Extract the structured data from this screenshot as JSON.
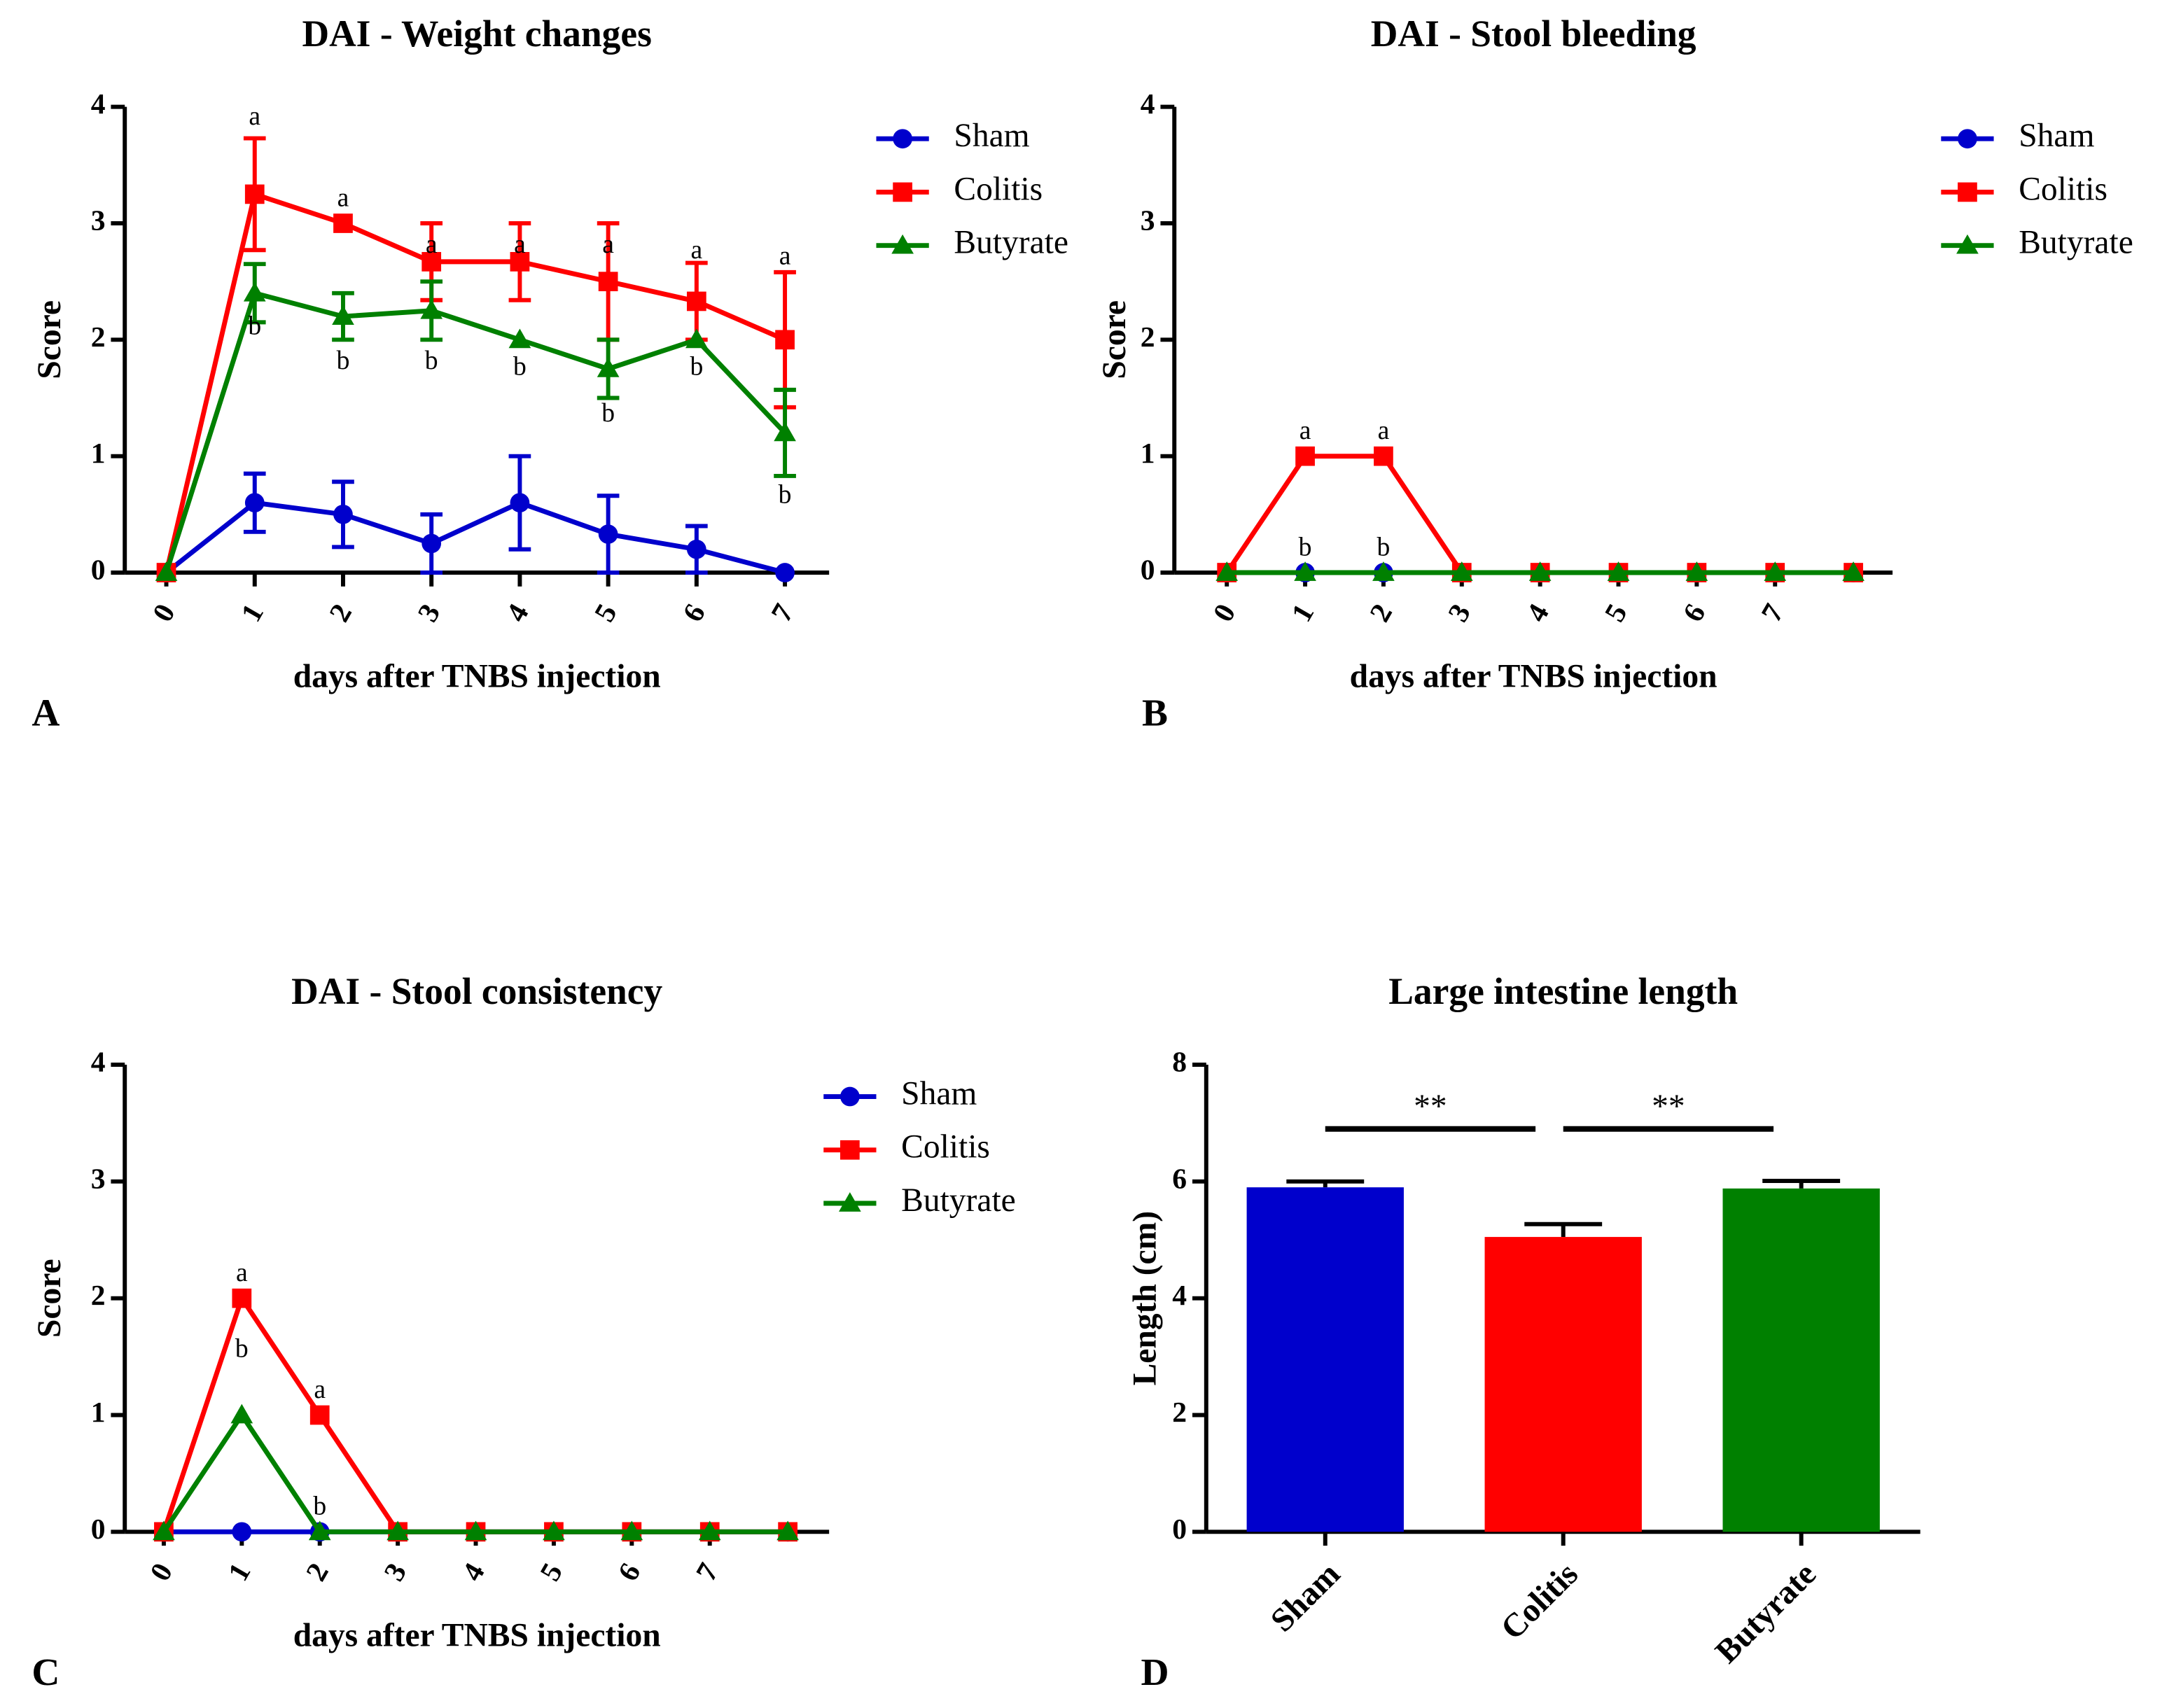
{
  "chart_data": [
    {
      "type": "line",
      "panel": "A",
      "title": "DAI - Weight changes",
      "xlabel": "days after TNBS injection",
      "ylabel": "Score",
      "x": [
        0,
        1,
        2,
        3,
        4,
        5,
        6,
        7
      ],
      "xlim": [
        -0.47,
        7.5
      ],
      "xticks": [
        0,
        1,
        2,
        3,
        4,
        5,
        6,
        7
      ],
      "ylim": [
        0,
        4
      ],
      "yticks": [
        0,
        1,
        2,
        3,
        4
      ],
      "series": [
        {
          "name": "Sham",
          "color": "#0000cc",
          "marker": "circle",
          "values": [
            0,
            0.6,
            0.5,
            0.25,
            0.6,
            0.33,
            0.2,
            0
          ],
          "errors": [
            0,
            0.25,
            0.28,
            0.25,
            0.4,
            0.33,
            0.2,
            0
          ]
        },
        {
          "name": "Colitis",
          "color": "#ff0000",
          "marker": "square",
          "values": [
            0,
            3.25,
            3,
            2.67,
            2.67,
            2.5,
            2.33,
            2
          ],
          "errors": [
            0,
            0.48,
            0,
            0.33,
            0.33,
            0.5,
            0.33,
            0.58
          ]
        },
        {
          "name": "Butyrate",
          "color": "#008000",
          "marker": "triangle",
          "values": [
            0,
            2.4,
            2.2,
            2.25,
            2,
            1.75,
            2,
            1.2
          ],
          "errors": [
            0,
            0.25,
            0.2,
            0.25,
            0,
            0.25,
            0,
            0.37
          ]
        }
      ],
      "annotations": [
        {
          "text": "a",
          "x": 1,
          "y": 3.9
        },
        {
          "text": "a",
          "x": 2,
          "y": 3.2
        },
        {
          "text": "a",
          "x": 3,
          "y": 2.8
        },
        {
          "text": "a",
          "x": 4,
          "y": 2.8
        },
        {
          "text": "a",
          "x": 5,
          "y": 2.8
        },
        {
          "text": "a",
          "x": 6,
          "y": 2.75
        },
        {
          "text": "a",
          "x": 7,
          "y": 2.7
        },
        {
          "text": "b",
          "x": 1,
          "y": 2.1
        },
        {
          "text": "b",
          "x": 2,
          "y": 1.8
        },
        {
          "text": "b",
          "x": 3,
          "y": 1.8
        },
        {
          "text": "b",
          "x": 4,
          "y": 1.75
        },
        {
          "text": "b",
          "x": 5,
          "y": 1.35
        },
        {
          "text": "b",
          "x": 6,
          "y": 1.75
        },
        {
          "text": "b",
          "x": 7,
          "y": 0.65
        }
      ]
    },
    {
      "type": "line",
      "panel": "B",
      "title": "DAI - Stool bleeding",
      "xlabel": "days after TNBS injection",
      "ylabel": "Score",
      "x": [
        0,
        1,
        2,
        3,
        4,
        5,
        6,
        7,
        8
      ],
      "xlim": [
        -0.67,
        8.5
      ],
      "xticks": [
        0,
        1,
        2,
        3,
        4,
        5,
        6,
        7
      ],
      "ylim": [
        0,
        4
      ],
      "yticks": [
        0,
        1,
        2,
        3,
        4
      ],
      "series": [
        {
          "name": "Sham",
          "color": "#0000cc",
          "marker": "circle",
          "values": [
            0,
            0,
            0,
            0,
            0,
            0,
            0,
            0,
            0
          ]
        },
        {
          "name": "Colitis",
          "color": "#ff0000",
          "marker": "square",
          "values": [
            0,
            1,
            1,
            0,
            0,
            0,
            0,
            0,
            0
          ]
        },
        {
          "name": "Butyrate",
          "color": "#008000",
          "marker": "triangle",
          "values": [
            0,
            0,
            0,
            0,
            0,
            0,
            0,
            0,
            0
          ]
        }
      ],
      "annotations": [
        {
          "text": "a",
          "x": 1,
          "y": 1.2
        },
        {
          "text": "a",
          "x": 2,
          "y": 1.2
        },
        {
          "text": "b",
          "x": 1,
          "y": 0.2
        },
        {
          "text": "b",
          "x": 2,
          "y": 0.2
        }
      ]
    },
    {
      "type": "line",
      "panel": "C",
      "title": "DAI - Stool consistency",
      "xlabel": "days after TNBS injection",
      "ylabel": "Score",
      "x": [
        0,
        1,
        2,
        3,
        4,
        5,
        6,
        7,
        8
      ],
      "xlim": [
        -0.5,
        8.53
      ],
      "xticks": [
        0,
        1,
        2,
        3,
        4,
        5,
        6,
        7
      ],
      "ylim": [
        0,
        4
      ],
      "yticks": [
        0,
        1,
        2,
        3,
        4
      ],
      "series": [
        {
          "name": "Sham",
          "color": "#0000cc",
          "marker": "circle",
          "values": [
            0,
            0,
            0,
            0,
            0,
            0,
            0,
            0,
            0
          ]
        },
        {
          "name": "Colitis",
          "color": "#ff0000",
          "marker": "square",
          "values": [
            0,
            2,
            1,
            0,
            0,
            0,
            0,
            0,
            0
          ]
        },
        {
          "name": "Butyrate",
          "color": "#008000",
          "marker": "triangle",
          "values": [
            0,
            1,
            0,
            0,
            0,
            0,
            0,
            0,
            0
          ]
        }
      ],
      "annotations": [
        {
          "text": "a",
          "x": 1,
          "y": 2.2
        },
        {
          "text": "b",
          "x": 1,
          "y": 1.55
        },
        {
          "text": "a",
          "x": 2,
          "y": 1.2
        },
        {
          "text": "b",
          "x": 2,
          "y": 0.2
        }
      ]
    },
    {
      "type": "bar",
      "panel": "D",
      "title": "Large intestine length",
      "ylabel": "Length (cm)",
      "categories": [
        "Sham",
        "Colitis",
        "Butyrate"
      ],
      "values": [
        5.9,
        5.05,
        5.88
      ],
      "errors": [
        0.1,
        0.22,
        0.13
      ],
      "colors": [
        "#0000cc",
        "#ff0000",
        "#008000"
      ],
      "ylim": [
        0,
        8
      ],
      "yticks": [
        0,
        2,
        4,
        6,
        8
      ],
      "significance": [
        {
          "label": "**",
          "between": [
            "Sham",
            "Colitis"
          ],
          "y": 6.9
        },
        {
          "label": "**",
          "between": [
            "Colitis",
            "Butyrate"
          ],
          "y": 6.9
        }
      ]
    }
  ]
}
